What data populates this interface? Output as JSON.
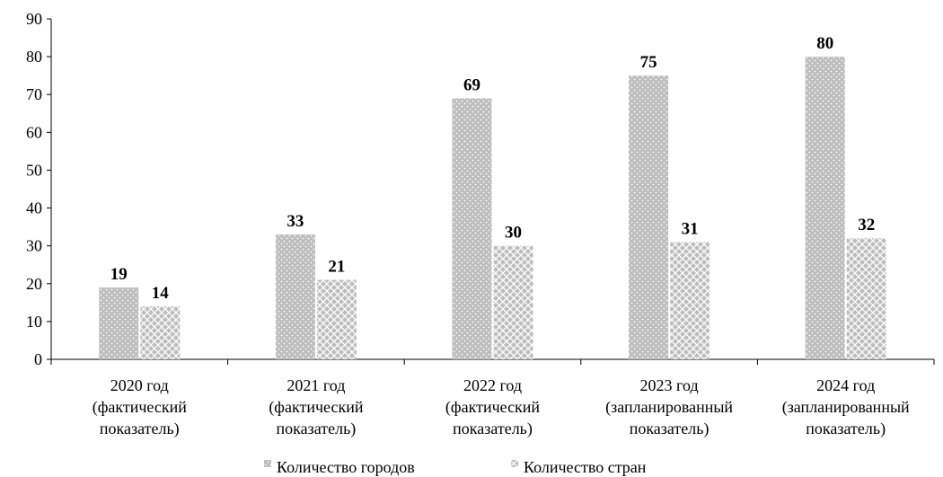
{
  "colors": {
    "bar_fill": "#bdbdbd",
    "pattern_mark": "#ffffff",
    "axis": "#000000"
  },
  "chart_data": {
    "type": "bar",
    "categories": [
      [
        "2020 год",
        "(фактический",
        "показатель)"
      ],
      [
        "2021 год",
        "(фактический",
        "показатель)"
      ],
      [
        "2022 год",
        "(фактический",
        "показатель)"
      ],
      [
        "2023 год",
        "(запланированный",
        "показатель)"
      ],
      [
        "2024 год",
        "(запланированный",
        "показатель)"
      ]
    ],
    "series": [
      {
        "name": "Количество городов",
        "pattern": "dots",
        "values": [
          19,
          33,
          69,
          75,
          80
        ]
      },
      {
        "name": "Количество стран",
        "pattern": "crosshatch",
        "values": [
          14,
          21,
          30,
          31,
          32
        ]
      }
    ],
    "ylim": [
      0,
      90
    ],
    "yticks": [
      0,
      10,
      20,
      30,
      40,
      50,
      60,
      70,
      80,
      90
    ],
    "grid": false,
    "legend_position": "bottom",
    "title": "",
    "xlabel": "",
    "ylabel": ""
  }
}
